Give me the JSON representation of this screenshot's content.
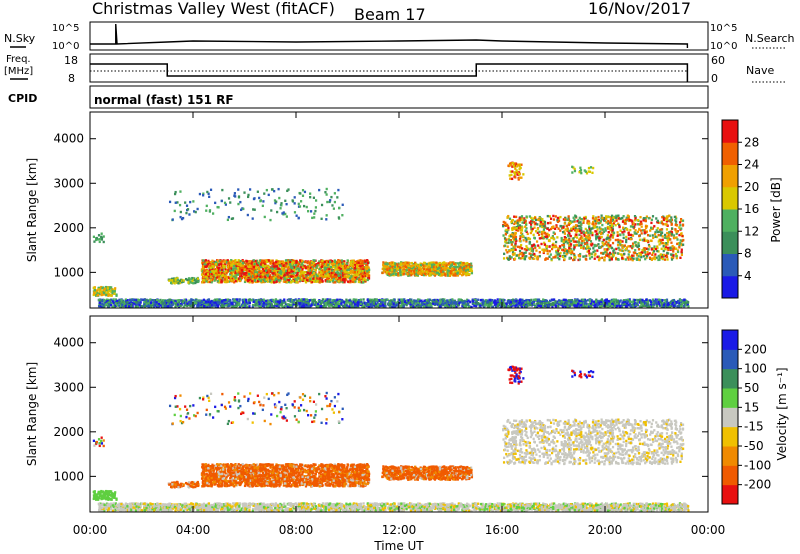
{
  "header": {
    "station": "Christmas Valley West (fitACF)",
    "beam": "Beam 17",
    "date": "16/Nov/2017"
  },
  "noise_panel": {
    "left_label": "N.Sky",
    "right_label": "N.Search",
    "left_ticks": [
      "10^5",
      "10^0"
    ],
    "right_ticks": [
      "10^5",
      "10^0"
    ]
  },
  "freq_panel": {
    "left_label_1": "Freq.",
    "left_label_2": "[MHz]",
    "right_label": "Nave",
    "left_ticks": [
      "18",
      "8"
    ],
    "right_ticks": [
      "60",
      "0"
    ]
  },
  "cpid_panel": {
    "label": "CPID",
    "mode_text": "normal (fast) 151 RF"
  },
  "colors": {
    "power": [
      "#1a1ae6",
      "#2a5ab8",
      "#3b8f5a",
      "#4fb060",
      "#d9c800",
      "#f0a000",
      "#f06000",
      "#e81010"
    ],
    "velocity": [
      "#1a1ae6",
      "#2a5ab8",
      "#3b8f5a",
      "#5fcf40",
      "#c8c8c0",
      "#f0c000",
      "#f08a00",
      "#f05a00",
      "#e81010"
    ]
  },
  "chart_data": [
    {
      "type": "heatmap",
      "name": "power",
      "ylabel": "Slant Range [km]",
      "ylim": [
        200,
        4600
      ],
      "yticks": [
        "1000",
        "2000",
        "3000",
        "4000"
      ],
      "colorbar_label": "Power [dB]",
      "colorbar_ticks": [
        "28",
        "24",
        "20",
        "16",
        "12",
        "8",
        "4"
      ]
    },
    {
      "type": "heatmap",
      "name": "velocity",
      "ylabel": "Slant Range [km]",
      "ylim": [
        200,
        4600
      ],
      "yticks": [
        "1000",
        "2000",
        "3000",
        "4000"
      ],
      "xlabel": "Time UT",
      "xticks": [
        "00:00",
        "04:00",
        "08:00",
        "12:00",
        "16:00",
        "20:00",
        "00:00"
      ],
      "colorbar_label": "Velocity [m s⁻¹]",
      "colorbar_ticks": [
        "200",
        "100",
        "50",
        "15",
        "-15",
        "-50",
        "-100",
        "-200"
      ]
    }
  ]
}
